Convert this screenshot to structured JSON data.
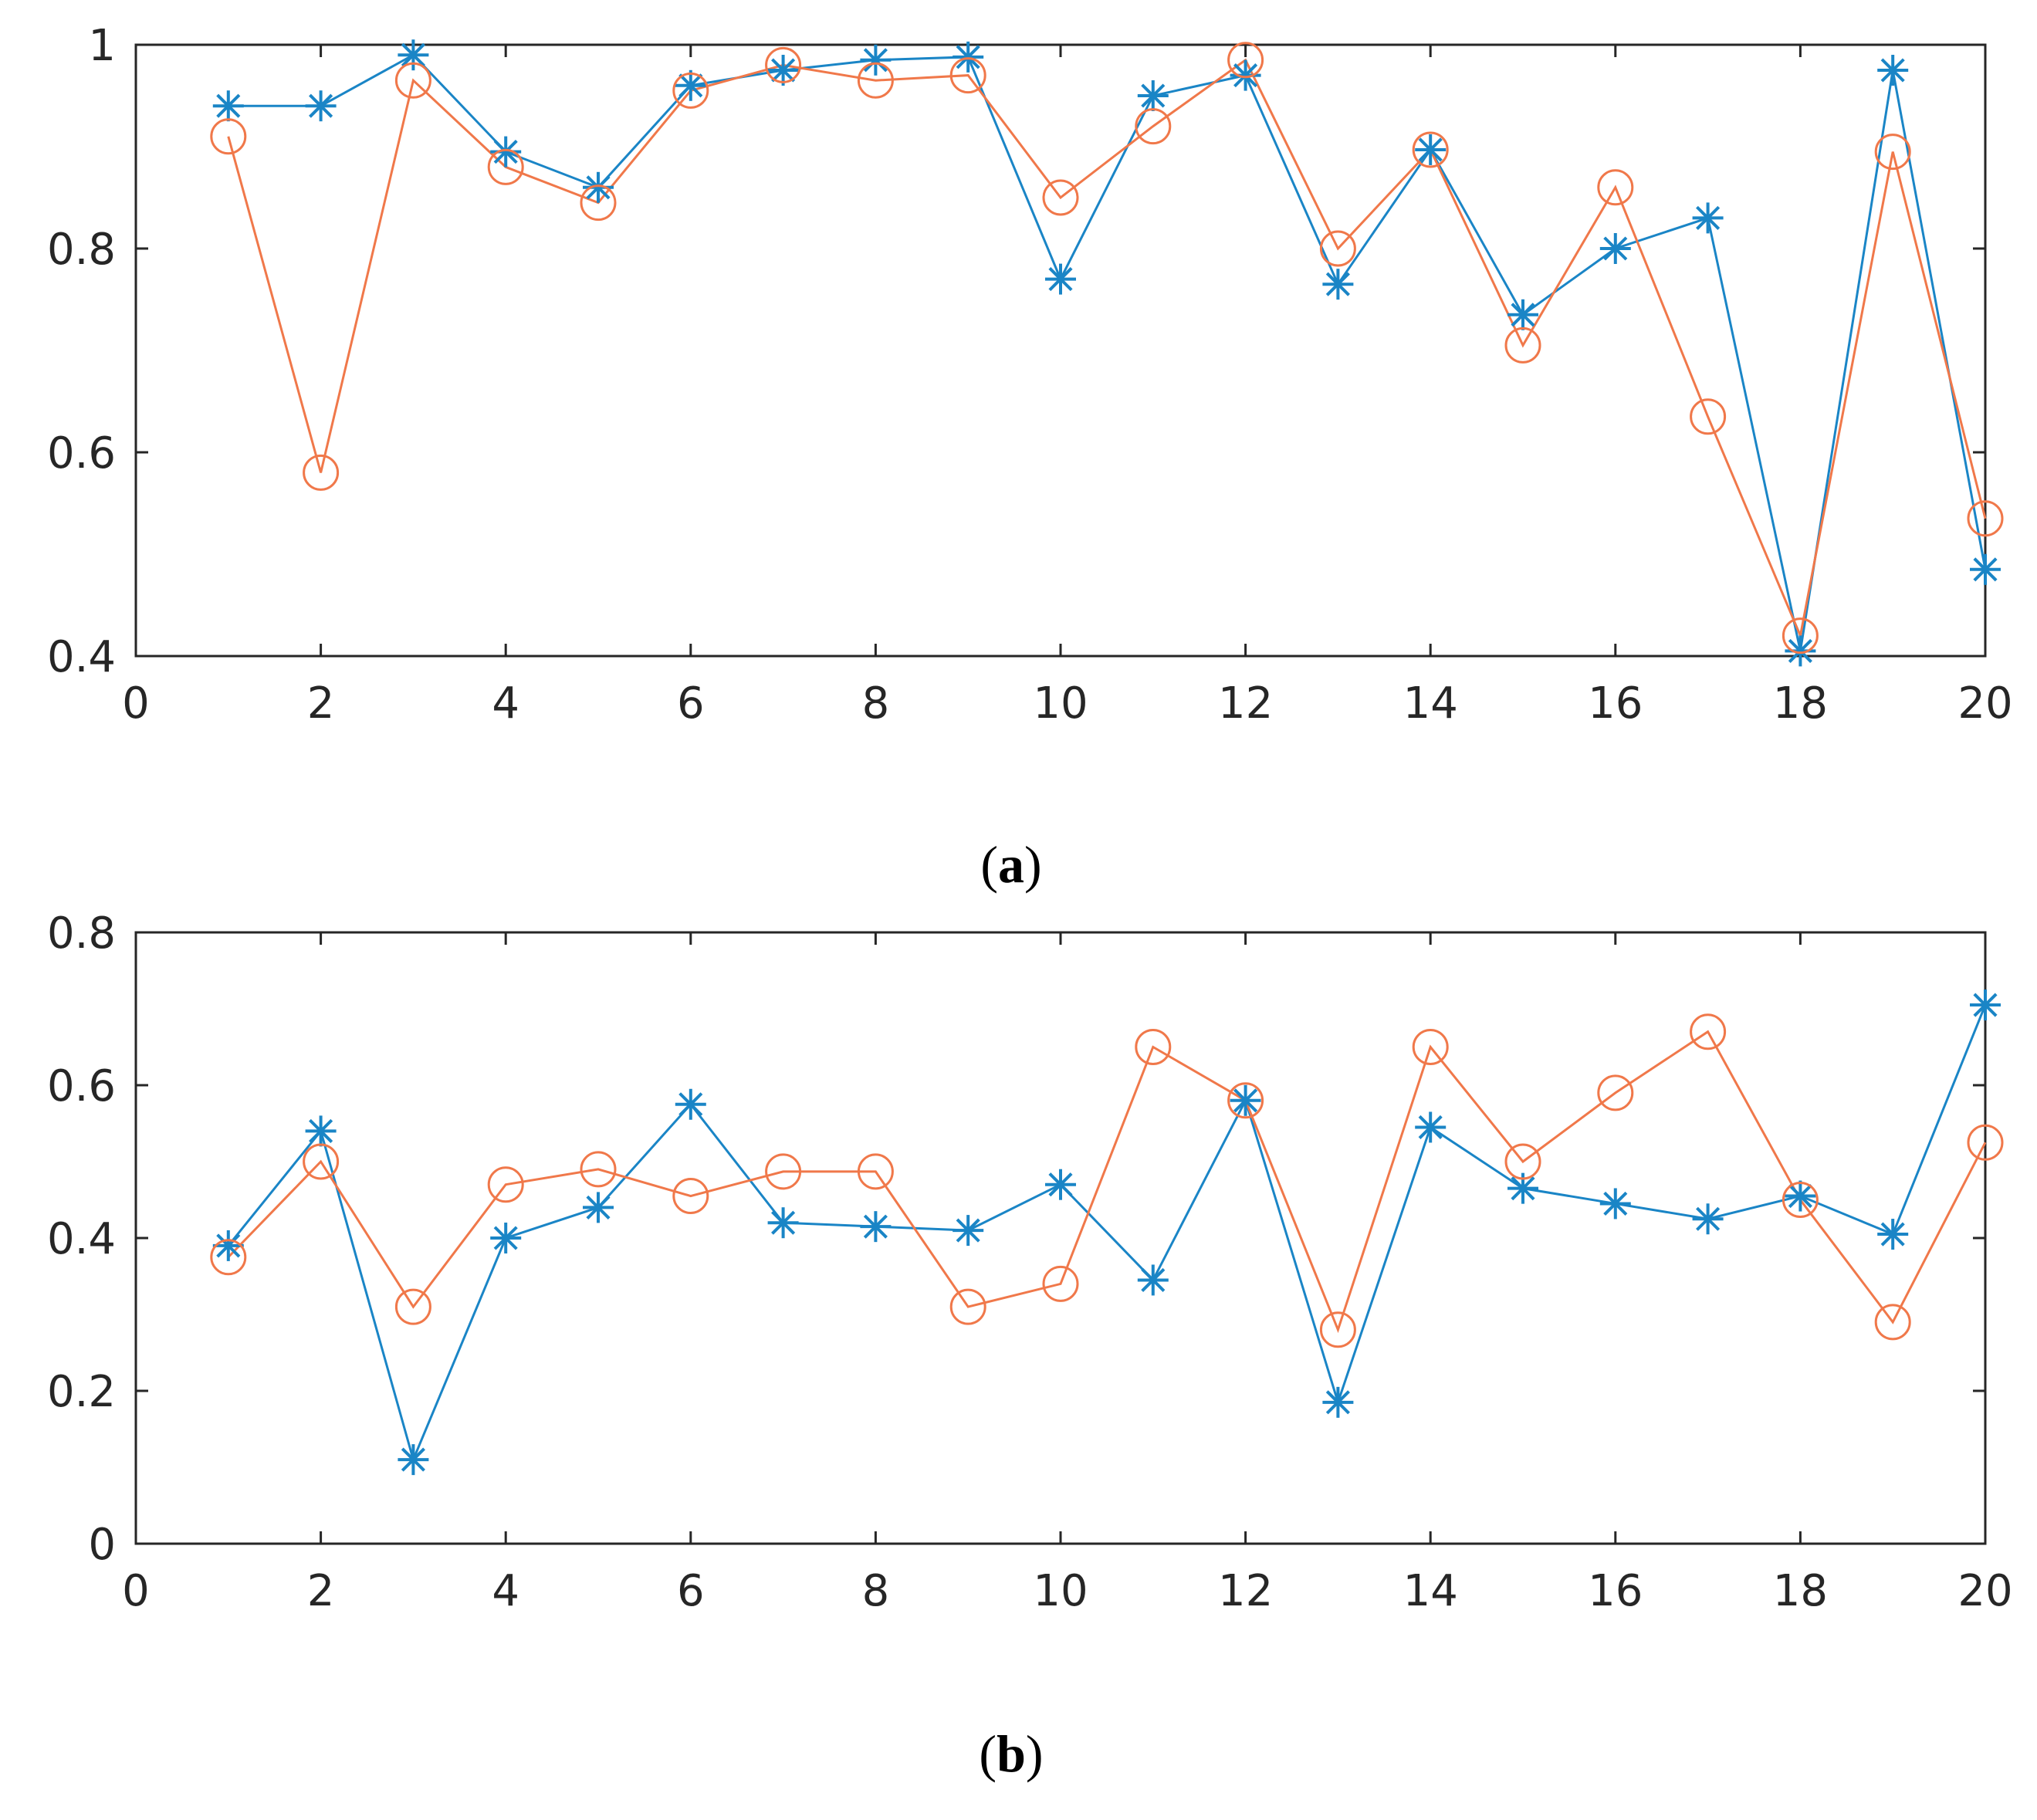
{
  "colors": {
    "series_blue": "#1a85c6",
    "series_orange": "#f0784a",
    "axis": "#262626"
  },
  "chart_data": [
    {
      "type": "line",
      "caption_letter": "a",
      "xlim": [
        0,
        20
      ],
      "ylim": [
        0.4,
        1
      ],
      "xticks": [
        "0",
        "2",
        "4",
        "6",
        "8",
        "10",
        "12",
        "14",
        "16",
        "18",
        "20"
      ],
      "xtick_values": [
        0,
        2,
        4,
        6,
        8,
        10,
        12,
        14,
        16,
        18,
        20
      ],
      "yticks": [
        "0.4",
        "0.6",
        "0.8",
        "1"
      ],
      "ytick_values": [
        0.4,
        0.6,
        0.8,
        1.0
      ],
      "x": [
        1,
        2,
        3,
        4,
        5,
        6,
        7,
        8,
        9,
        10,
        11,
        12,
        13,
        14,
        15,
        16,
        17,
        18,
        19,
        20
      ],
      "series": [
        {
          "name": "asterisk",
          "color": "#1a85c6",
          "marker": "asterisk",
          "values": [
            0.94,
            0.94,
            0.99,
            0.895,
            0.86,
            0.96,
            0.975,
            0.985,
            0.988,
            0.77,
            0.95,
            0.97,
            0.765,
            0.897,
            0.735,
            0.8,
            0.83,
            0.405,
            0.975,
            0.485
          ]
        },
        {
          "name": "circle",
          "color": "#f0784a",
          "marker": "circle",
          "values": [
            0.91,
            0.58,
            0.965,
            0.88,
            0.845,
            0.955,
            0.98,
            0.965,
            0.97,
            0.85,
            0.92,
            0.985,
            0.8,
            0.897,
            0.705,
            0.86,
            0.635,
            0.42,
            0.895,
            0.535
          ]
        }
      ]
    },
    {
      "type": "line",
      "caption_letter": "b",
      "xlim": [
        0,
        20
      ],
      "ylim": [
        0,
        0.8
      ],
      "xticks": [
        "0",
        "2",
        "4",
        "6",
        "8",
        "10",
        "12",
        "14",
        "16",
        "18",
        "20"
      ],
      "xtick_values": [
        0,
        2,
        4,
        6,
        8,
        10,
        12,
        14,
        16,
        18,
        20
      ],
      "yticks": [
        "0",
        "0.2",
        "0.4",
        "0.6",
        "0.8"
      ],
      "ytick_values": [
        0,
        0.2,
        0.4,
        0.6,
        0.8
      ],
      "x": [
        1,
        2,
        3,
        4,
        5,
        6,
        7,
        8,
        9,
        10,
        11,
        12,
        13,
        14,
        15,
        16,
        17,
        18,
        19,
        20
      ],
      "series": [
        {
          "name": "asterisk",
          "color": "#1a85c6",
          "marker": "asterisk",
          "values": [
            0.39,
            0.54,
            0.11,
            0.4,
            0.44,
            0.575,
            0.42,
            0.415,
            0.41,
            0.47,
            0.345,
            0.58,
            0.185,
            0.545,
            0.465,
            0.445,
            0.425,
            0.455,
            0.405,
            0.705
          ]
        },
        {
          "name": "circle",
          "color": "#f0784a",
          "marker": "circle",
          "values": [
            0.375,
            0.5,
            0.31,
            0.47,
            0.49,
            0.455,
            0.487,
            0.487,
            0.31,
            0.34,
            0.65,
            0.58,
            0.28,
            0.65,
            0.5,
            0.59,
            0.67,
            0.45,
            0.29,
            0.525
          ]
        }
      ]
    }
  ]
}
